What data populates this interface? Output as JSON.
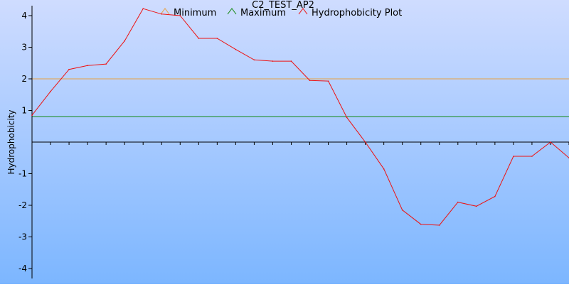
{
  "chart_data": {
    "type": "line",
    "title": "C2_TEST_AP2",
    "ylabel": "Hydrophobicity",
    "xlabel": "",
    "ylim": [
      -4.5,
      4.5
    ],
    "yticks": [
      -4,
      -3,
      -2,
      -1,
      1,
      2,
      3,
      4
    ],
    "grid": false,
    "legend": "top",
    "background": {
      "top": "#cfdcff",
      "bottom": "#7cb6ff"
    },
    "series": [
      {
        "name": "Minimum",
        "color": "#e8a040",
        "style": "hline",
        "value": 2.0
      },
      {
        "name": "Maximum",
        "color": "#118811",
        "style": "hline",
        "value": 0.8
      },
      {
        "name": "Hydrophobicity Plot",
        "color": "#ee1111",
        "style": "line",
        "values": [
          0.85,
          1.6,
          2.3,
          2.42,
          2.47,
          3.2,
          4.22,
          4.05,
          4.0,
          3.28,
          3.28,
          2.93,
          2.6,
          2.56,
          2.56,
          1.95,
          1.93,
          0.78,
          0.0,
          -0.85,
          -2.15,
          -2.6,
          -2.63,
          -1.9,
          -2.03,
          -1.72,
          -0.45,
          -0.45,
          0.0,
          -0.5
        ]
      }
    ]
  }
}
